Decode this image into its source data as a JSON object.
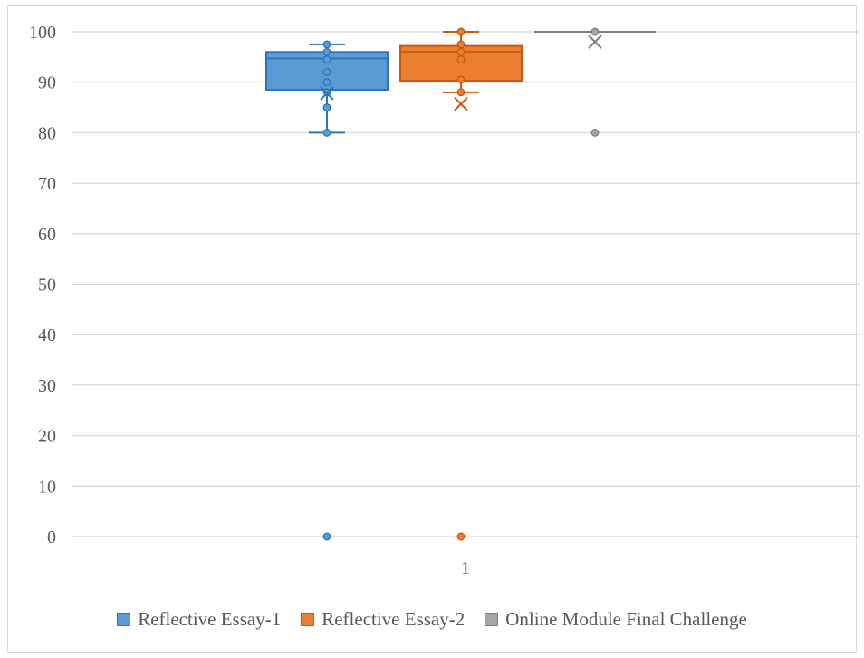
{
  "chart_data": {
    "type": "box",
    "categories": [
      "1"
    ],
    "ylim": [
      0,
      100
    ],
    "yticks": [
      0,
      10,
      20,
      30,
      40,
      50,
      60,
      70,
      80,
      90,
      100
    ],
    "grid": true,
    "legend_position": "bottom",
    "series": [
      {
        "name": "Reflective Essay-1",
        "color": "#5b9bd5",
        "stroke": "#2e75b6",
        "whisker_low": 80,
        "q1": 88.5,
        "median": 94.7,
        "q3": 96,
        "whisker_high": 97.5,
        "mean": 87.8,
        "points": [
          97.5,
          96,
          94.5,
          92,
          90,
          88,
          85,
          80
        ],
        "outliers": [
          0
        ]
      },
      {
        "name": "Reflective Essay-2",
        "color": "#ed7d31",
        "stroke": "#c55a11",
        "whisker_low": 88,
        "q1": 90.3,
        "median": 96,
        "q3": 97.2,
        "whisker_high": 100,
        "mean": 85.7,
        "points": [
          100,
          97.5,
          96,
          94.5,
          90.5,
          88
        ],
        "outliers": [
          0
        ]
      },
      {
        "name": "Online Module Final Challenge",
        "color": "#a5a5a5",
        "stroke": "#7f7f7f",
        "whisker_low": 100,
        "q1": 100,
        "median": 100,
        "q3": 100,
        "whisker_high": 100,
        "mean": 98,
        "points": [
          100
        ],
        "outliers": [
          80
        ]
      }
    ]
  }
}
